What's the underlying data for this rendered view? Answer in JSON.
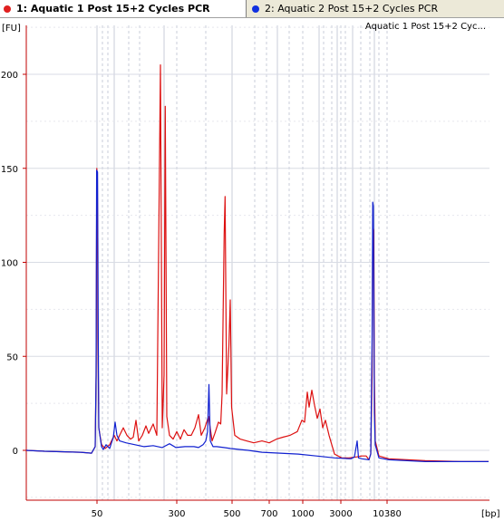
{
  "tabs": [
    {
      "label": "1: Aquatic 1 Post 15+2 Cycles PCR",
      "color": "#e02020",
      "active": true
    },
    {
      "label": "2: Aquatic 2 Post 15+2 Cycles PCR",
      "color": "#1030e0",
      "active": false
    }
  ],
  "chart_data": {
    "type": "line",
    "ylabel": "[FU]",
    "xlabel": "[bp]",
    "legend": "Aquatic 1 Post 15+2 Cyc...",
    "legend_position": "top-right",
    "ylim": [
      -25,
      225
    ],
    "y_ticks": [
      0,
      50,
      100,
      150,
      200
    ],
    "x_ticks": [
      "50",
      "300",
      "500",
      "700",
      "1000",
      "3000",
      "10380"
    ],
    "grid": true,
    "series": [
      {
        "name": "Aquatic 1 Post 15+2 Cycles PCR",
        "color": "#dd1010",
        "points": [
          [
            0,
            0
          ],
          [
            20,
            -0.5
          ],
          [
            60,
            -1
          ],
          [
            72,
            -1.5
          ],
          [
            76,
            2
          ],
          [
            77,
            40
          ],
          [
            77.8,
            150
          ],
          [
            78.4,
            146
          ],
          [
            79,
            60
          ],
          [
            80,
            12
          ],
          [
            83,
            3
          ],
          [
            87,
            1
          ],
          [
            92,
            3
          ],
          [
            97,
            8
          ],
          [
            100,
            5
          ],
          [
            103,
            8
          ],
          [
            107,
            12
          ],
          [
            111,
            8
          ],
          [
            115,
            6
          ],
          [
            118,
            7
          ],
          [
            121,
            16
          ],
          [
            124,
            5
          ],
          [
            128,
            8
          ],
          [
            132,
            13
          ],
          [
            135,
            9
          ],
          [
            140,
            14
          ],
          [
            144,
            8
          ],
          [
            148,
            205
          ],
          [
            150,
            12
          ],
          [
            152,
            40
          ],
          [
            153.3,
            183
          ],
          [
            155,
            18
          ],
          [
            158,
            8
          ],
          [
            162,
            6
          ],
          [
            166,
            10
          ],
          [
            170,
            6
          ],
          [
            174,
            11
          ],
          [
            178,
            8
          ],
          [
            182,
            8
          ],
          [
            186,
            12
          ],
          [
            190,
            19
          ],
          [
            193,
            8
          ],
          [
            197,
            12
          ],
          [
            201,
            18
          ],
          [
            205,
            5
          ],
          [
            208,
            9
          ],
          [
            212,
            15
          ],
          [
            214.5,
            14
          ],
          [
            216,
            30
          ],
          [
            218.3,
            115
          ],
          [
            219.3,
            135
          ],
          [
            221,
            30
          ],
          [
            223.5,
            55
          ],
          [
            225,
            80
          ],
          [
            226.5,
            23
          ],
          [
            230,
            8
          ],
          [
            236,
            6
          ],
          [
            243,
            5
          ],
          [
            251,
            4
          ],
          [
            260,
            5
          ],
          [
            268,
            4
          ],
          [
            276,
            6
          ],
          [
            283,
            7
          ],
          [
            291,
            8
          ],
          [
            299,
            10
          ],
          [
            304,
            16
          ],
          [
            307,
            15
          ],
          [
            310,
            31
          ],
          [
            312,
            23
          ],
          [
            315,
            32
          ],
          [
            318,
            24
          ],
          [
            321,
            17
          ],
          [
            324,
            22
          ],
          [
            327,
            12
          ],
          [
            330,
            16
          ],
          [
            334,
            8
          ],
          [
            340,
            -2
          ],
          [
            348,
            -4
          ],
          [
            356,
            -4
          ],
          [
            364,
            -3.5
          ],
          [
            370,
            -3
          ],
          [
            375,
            -3
          ],
          [
            378,
            -5
          ],
          [
            380,
            -2
          ],
          [
            381.5,
            40
          ],
          [
            382.2,
            120
          ],
          [
            383.3,
            117
          ],
          [
            384,
            40
          ],
          [
            385,
            5
          ],
          [
            389,
            -3
          ],
          [
            400,
            -4.5
          ],
          [
            420,
            -5
          ],
          [
            440,
            -5.5
          ],
          [
            480,
            -6
          ],
          [
            510,
            -6
          ]
        ]
      },
      {
        "name": "Aquatic 2 Post 15+2 Cycles PCR",
        "color": "#1020d0",
        "points": [
          [
            0,
            0
          ],
          [
            20,
            -0.5
          ],
          [
            60,
            -1
          ],
          [
            72,
            -1.5
          ],
          [
            76,
            2
          ],
          [
            77,
            40
          ],
          [
            77.6,
            149
          ],
          [
            78.6,
            148
          ],
          [
            79.4,
            60
          ],
          [
            80,
            12
          ],
          [
            83,
            2
          ],
          [
            85,
            0.5
          ],
          [
            88,
            3
          ],
          [
            92,
            1
          ],
          [
            96,
            7
          ],
          [
            98,
            15
          ],
          [
            100,
            8
          ],
          [
            103,
            5
          ],
          [
            110,
            4
          ],
          [
            120,
            3
          ],
          [
            130,
            2
          ],
          [
            140,
            2.5
          ],
          [
            150,
            1.5
          ],
          [
            158,
            3.5
          ],
          [
            165,
            1.5
          ],
          [
            175,
            2
          ],
          [
            185,
            2
          ],
          [
            190,
            1.5
          ],
          [
            195,
            3
          ],
          [
            198,
            5
          ],
          [
            200,
            10
          ],
          [
            201.5,
            35
          ],
          [
            203,
            5
          ],
          [
            206,
            2
          ],
          [
            210,
            2
          ],
          [
            218,
            1.5
          ],
          [
            225,
            1
          ],
          [
            235,
            0.5
          ],
          [
            245,
            0
          ],
          [
            260,
            -1
          ],
          [
            280,
            -1.5
          ],
          [
            300,
            -2
          ],
          [
            320,
            -3
          ],
          [
            340,
            -4
          ],
          [
            358,
            -4.5
          ],
          [
            362,
            -3.5
          ],
          [
            365,
            5
          ],
          [
            366.5,
            -4
          ],
          [
            370,
            -4.5
          ],
          [
            378,
            -5
          ],
          [
            380,
            -2
          ],
          [
            381.5,
            60
          ],
          [
            382.2,
            132
          ],
          [
            382.8,
            130
          ],
          [
            383.4,
            80
          ],
          [
            384,
            20
          ],
          [
            385,
            3
          ],
          [
            389,
            -4
          ],
          [
            400,
            -5
          ],
          [
            420,
            -5.5
          ],
          [
            440,
            -6
          ],
          [
            480,
            -6
          ],
          [
            510,
            -6
          ]
        ]
      }
    ]
  }
}
